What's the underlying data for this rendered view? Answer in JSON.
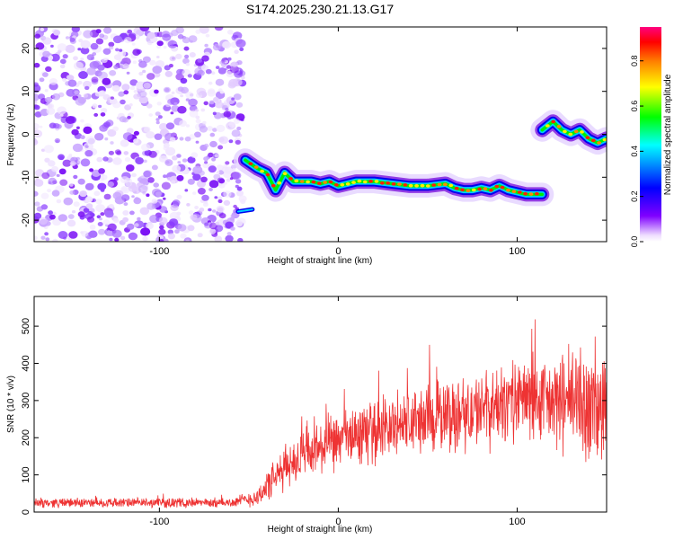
{
  "title": "S174.2025.230.21.13.G17",
  "chart_data": [
    {
      "type": "heatmap",
      "name": "spectrogram",
      "xlabel": "Height of straight line (km)",
      "ylabel": "Frequency (Hz)",
      "xlim": [
        -170,
        150
      ],
      "ylim": [
        -25,
        25
      ],
      "xticks": [
        -100,
        0,
        100
      ],
      "xtick_labels": [
        "-100",
        "0",
        "100"
      ],
      "yticks": [
        -20,
        -10,
        0,
        10,
        20
      ],
      "ytick_labels": [
        "-20",
        "-10",
        "0",
        "10",
        "20"
      ],
      "noise_region_x": [
        -170,
        -55
      ],
      "ridge": {
        "x": [
          -52,
          -45,
          -40,
          -35,
          -30,
          -25,
          -20,
          -15,
          -10,
          -5,
          0,
          10,
          20,
          30,
          40,
          50,
          60,
          65,
          70,
          75,
          80,
          85,
          90,
          95,
          100,
          105,
          110,
          114
        ],
        "y": [
          -6,
          -8,
          -9,
          -13,
          -9,
          -11,
          -11,
          -11,
          -11.5,
          -11,
          -12,
          -11,
          -11,
          -11.5,
          -12,
          -12,
          -11.5,
          -12.5,
          -13,
          -13,
          -12.5,
          -13,
          -12,
          -13,
          -13.5,
          -14,
          -14,
          -14
        ]
      },
      "ridge2": {
        "x": [
          114,
          120,
          125,
          130,
          135,
          140,
          145,
          150
        ],
        "y": [
          1,
          3,
          1,
          0,
          1,
          -1,
          -2,
          -1
        ]
      },
      "colorbar": {
        "label": "Normalized spectral amplitude",
        "range": [
          0,
          0.95
        ],
        "ticks": [
          0.0,
          0.2,
          0.4,
          0.6,
          0.8
        ],
        "tick_labels": [
          "0.0",
          "0.2",
          "0.4",
          "0.6",
          "0.8"
        ],
        "colors": [
          "#ffffff",
          "#7f00ff",
          "#0000ff",
          "#00ffff",
          "#00ff00",
          "#ffff00",
          "#ff7f00",
          "#ff0000",
          "#ff0080"
        ]
      }
    },
    {
      "type": "line",
      "name": "snr",
      "xlabel": "Height of straight line (km)",
      "ylabel": "SNR (10 * v/v)",
      "xlim": [
        -170,
        150
      ],
      "ylim": [
        0,
        580
      ],
      "xticks": [
        -100,
        0,
        100
      ],
      "xtick_labels": [
        "-100",
        "0",
        "100"
      ],
      "yticks": [
        0,
        100,
        200,
        300,
        400,
        500
      ],
      "ytick_labels": [
        "0",
        "100",
        "200",
        "300",
        "400",
        "500"
      ],
      "color": "#ee3333",
      "envelope": {
        "x": [
          -170,
          -150,
          -100,
          -60,
          -45,
          -40,
          -35,
          -30,
          -20,
          -10,
          0,
          20,
          40,
          60,
          80,
          100,
          110,
          115,
          120,
          130,
          140,
          150
        ],
        "mean": [
          25,
          25,
          25,
          25,
          40,
          70,
          90,
          120,
          150,
          170,
          190,
          220,
          240,
          260,
          270,
          300,
          310,
          290,
          290,
          300,
          280,
          270
        ],
        "spread": [
          15,
          15,
          15,
          15,
          30,
          50,
          60,
          70,
          80,
          90,
          90,
          100,
          110,
          120,
          120,
          130,
          140,
          140,
          150,
          170,
          190,
          200
        ]
      }
    }
  ]
}
